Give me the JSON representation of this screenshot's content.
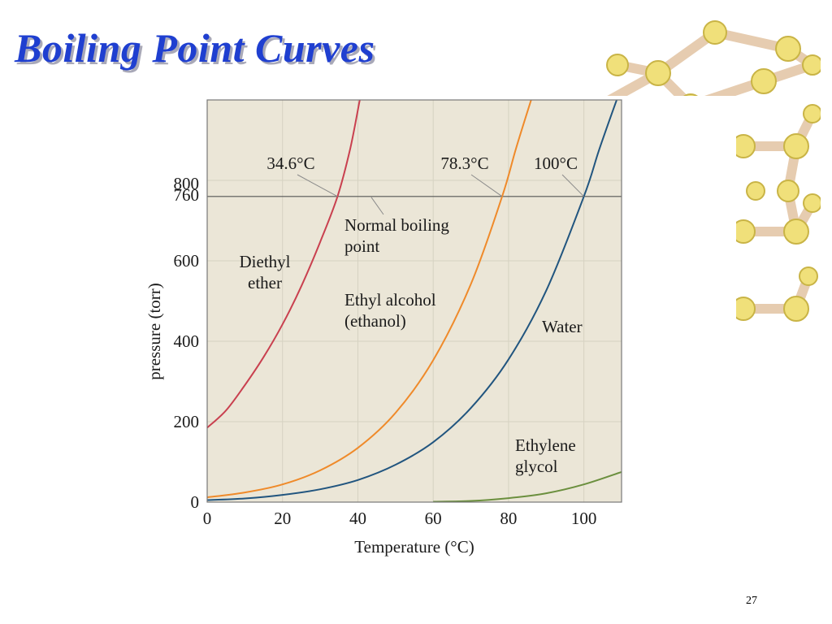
{
  "slide": {
    "title": "Boiling Point Curves",
    "number": "27"
  },
  "colors": {
    "title": "#1f3fd0",
    "plot_background": "#ebe6d7",
    "grid": "#d6d2c2",
    "reference_line": "#555555",
    "diethyl_ether": "#c9404f",
    "ethyl_alcohol": "#ef8a2a",
    "water": "#21557f",
    "ethylene_glycol": "#6b8f3e"
  },
  "chart_data": {
    "type": "line",
    "title": "",
    "xlabel": "Temperature (°C)",
    "ylabel": "pressure (torr)",
    "xlim": [
      0,
      110
    ],
    "ylim": [
      0,
      1000
    ],
    "xticks": [
      0,
      20,
      40,
      60,
      80,
      100
    ],
    "yticks": [
      0,
      200,
      400,
      600,
      760,
      800
    ],
    "grid": true,
    "reference_line": {
      "y": 760,
      "label": "Normal boiling point"
    },
    "boiling_points": [
      {
        "label": "34.6°C",
        "x": 34.6,
        "y": 760
      },
      {
        "label": "78.3°C",
        "x": 78.3,
        "y": 760
      },
      {
        "label": "100°C",
        "x": 100,
        "y": 760
      }
    ],
    "series": [
      {
        "name": "Diethyl ether",
        "color": "#c9404f",
        "x": [
          0,
          5,
          10,
          15,
          20,
          25,
          30,
          34.6,
          38,
          40.5
        ],
        "y": [
          185,
          228,
          291,
          361,
          442,
          537,
          647,
          760,
          880,
          1000
        ]
      },
      {
        "name": "Ethyl alcohol (ethanol)",
        "color": "#ef8a2a",
        "x": [
          0,
          10,
          20,
          30,
          40,
          50,
          60,
          70,
          78.3,
          82,
          86
        ],
        "y": [
          12,
          24,
          44,
          79,
          135,
          222,
          353,
          542,
          760,
          880,
          1000
        ]
      },
      {
        "name": "Water",
        "color": "#21557f",
        "x": [
          0,
          10,
          20,
          30,
          40,
          50,
          60,
          70,
          80,
          90,
          100,
          104,
          108.7
        ],
        "y": [
          5,
          9,
          18,
          32,
          55,
          93,
          149,
          234,
          355,
          526,
          760,
          875,
          1000
        ]
      },
      {
        "name": "Ethylene glycol",
        "color": "#6b8f3e",
        "x": [
          60,
          70,
          80,
          90,
          100,
          110
        ],
        "y": [
          1,
          3,
          10,
          22,
          44,
          75
        ]
      }
    ],
    "annotations": {
      "diethyl_ether": [
        "Diethyl",
        "ether"
      ],
      "ethyl_alcohol": [
        "Ethyl alcohol",
        "(ethanol)"
      ],
      "water": [
        "Water"
      ],
      "ethylene_glycol": [
        "Ethylene",
        "glycol"
      ],
      "normal_boiling_point": [
        "Normal boiling",
        "point"
      ]
    }
  }
}
